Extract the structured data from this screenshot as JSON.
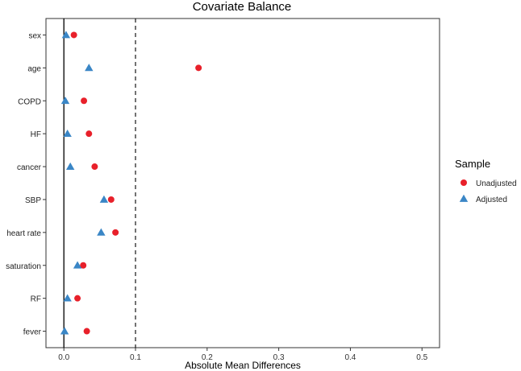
{
  "chart_data": {
    "type": "scatter",
    "title": "Covariate Balance",
    "xlabel": "Absolute Mean Differences",
    "ylabel": "",
    "xlim": [
      -0.025,
      0.5245
    ],
    "x_ticks": [
      0.0,
      0.1,
      0.2,
      0.3,
      0.4,
      0.5
    ],
    "x_tick_labels": [
      "0.0",
      "0.1",
      "0.2",
      "0.3",
      "0.4",
      "0.5"
    ],
    "categories": [
      "sex",
      "age",
      "COPD",
      "HF",
      "cancer",
      "SBP",
      "heart rate",
      "saturation",
      "RF",
      "fever"
    ],
    "reference_lines": [
      {
        "x": 0.0,
        "style": "solid"
      },
      {
        "x": 0.1,
        "style": "dashed"
      }
    ],
    "grid": false,
    "legend": {
      "title": "Sample",
      "position": "right"
    },
    "series": [
      {
        "name": "Unadjusted",
        "marker": "circle",
        "color": "#e8202a",
        "values": [
          0.014,
          0.188,
          0.028,
          0.035,
          0.043,
          0.066,
          0.072,
          0.027,
          0.019,
          0.032
        ]
      },
      {
        "name": "Adjusted",
        "marker": "triangle",
        "color": "#3a86c6",
        "values": [
          0.003,
          0.035,
          0.002,
          0.005,
          0.009,
          0.056,
          0.052,
          0.019,
          0.005,
          0.001
        ]
      }
    ]
  }
}
